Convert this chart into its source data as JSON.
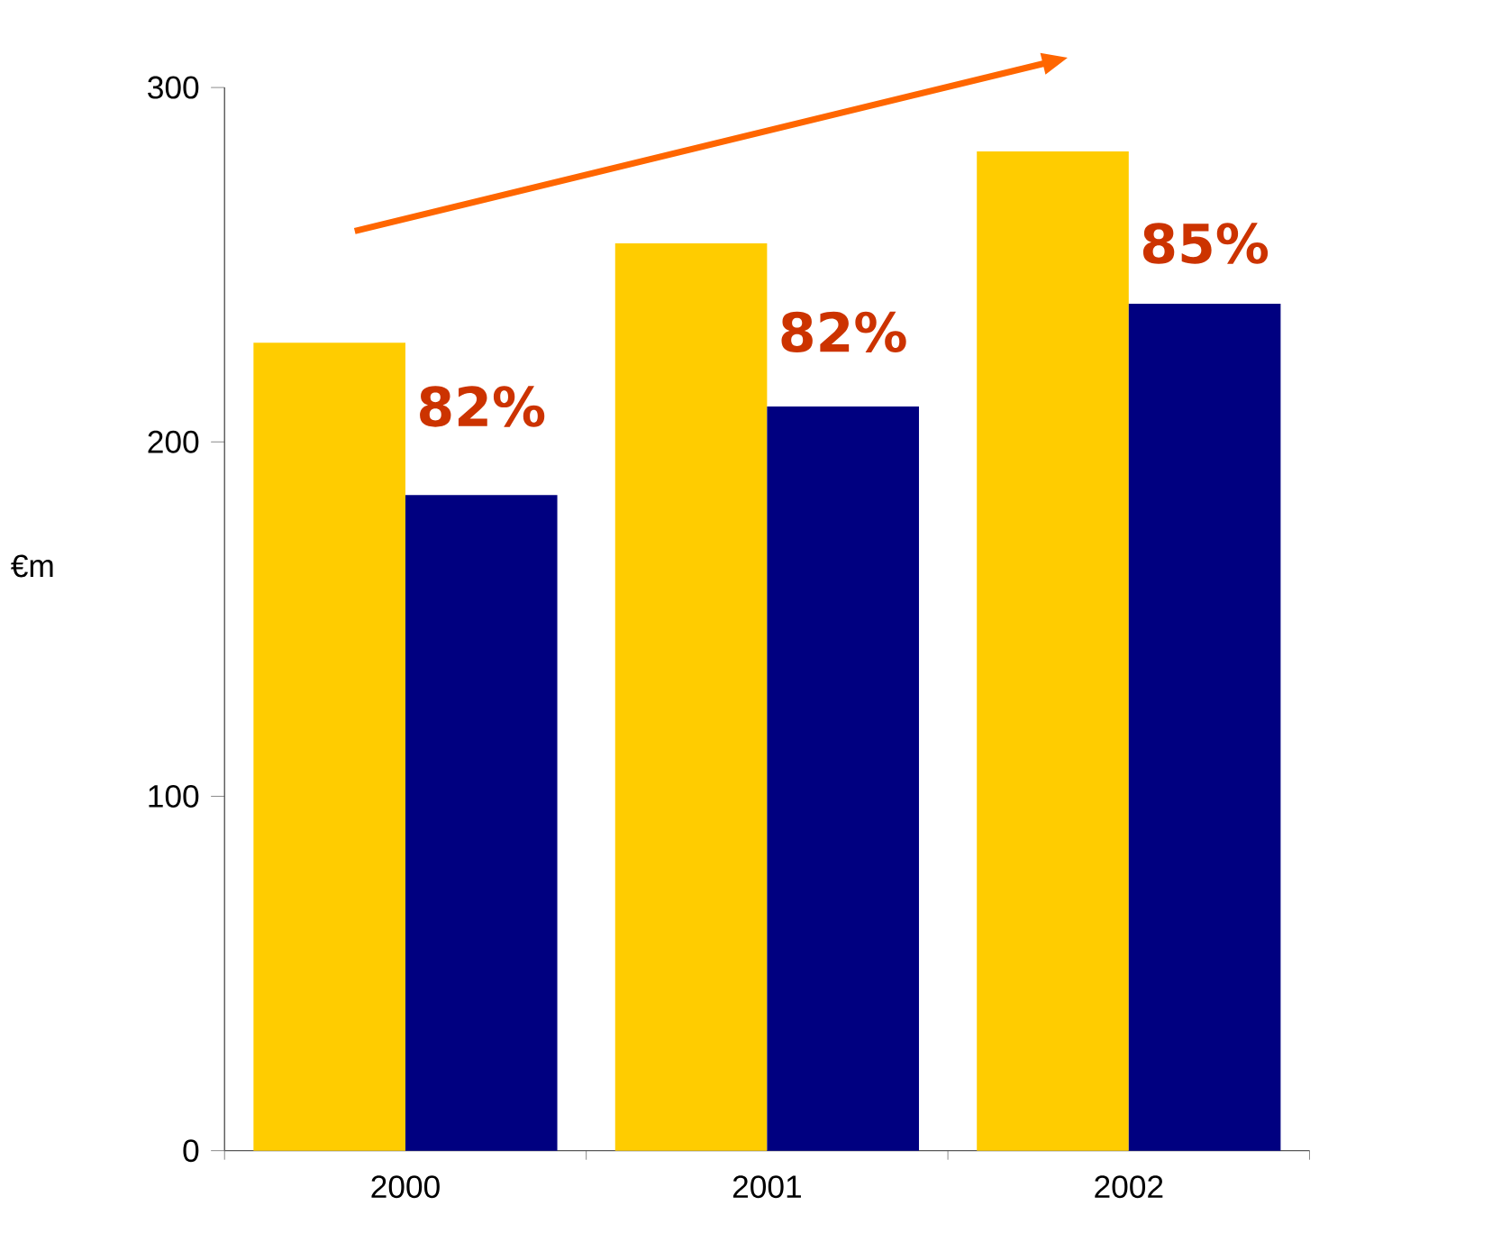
{
  "chart_data": {
    "type": "bar",
    "ylabel": "€m",
    "categories": [
      "2000",
      "2001",
      "2002"
    ],
    "series": [
      {
        "color": "#ffcc00",
        "values": [
          228,
          256,
          282
        ]
      },
      {
        "color": "#000080",
        "values": [
          185,
          210,
          239
        ]
      }
    ],
    "ylim": [
      0,
      300
    ],
    "yticks": [
      0,
      100,
      200,
      300
    ],
    "annotations": [
      {
        "text": "82%",
        "x": "2000",
        "y": 210
      },
      {
        "text": "82%",
        "x": "2001",
        "y": 231
      },
      {
        "text": "85%",
        "x": "2002",
        "y": 256
      }
    ],
    "grid": false
  }
}
